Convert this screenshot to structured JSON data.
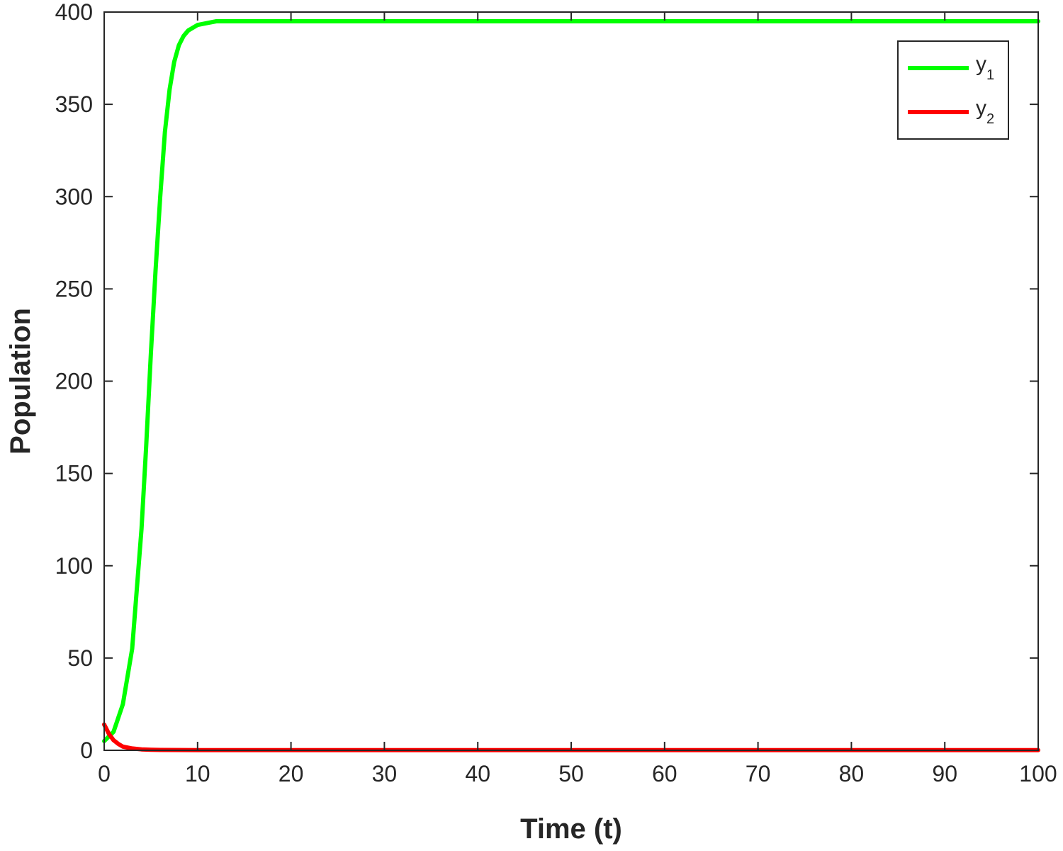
{
  "chart_data": {
    "type": "line",
    "xlabel": "Time (t)",
    "ylabel": "Population",
    "xlim": [
      0,
      100
    ],
    "ylim": [
      0,
      400
    ],
    "x_ticks": [
      0,
      10,
      20,
      30,
      40,
      50,
      60,
      70,
      80,
      90,
      100
    ],
    "y_ticks": [
      0,
      50,
      100,
      150,
      200,
      250,
      300,
      350,
      400
    ],
    "legend_position": "top-right",
    "box": true,
    "grid": false,
    "series": [
      {
        "name": "y",
        "subscript": "1",
        "color": "#00ff00",
        "x": [
          0,
          1,
          2,
          3,
          4,
          4.5,
          5,
          5.5,
          6,
          6.5,
          7,
          7.5,
          8,
          8.5,
          9,
          10,
          11,
          12,
          15,
          20,
          30,
          40,
          50,
          60,
          70,
          80,
          90,
          100
        ],
        "y": [
          5,
          10,
          25,
          55,
          120,
          165,
          215,
          260,
          300,
          335,
          358,
          373,
          382,
          387,
          390,
          393,
          394,
          395,
          395,
          395,
          395,
          395,
          395,
          395,
          395,
          395,
          395,
          395
        ]
      },
      {
        "name": "y",
        "subscript": "2",
        "color": "#ff0000",
        "x": [
          0,
          0.5,
          1,
          1.5,
          2,
          3,
          4,
          5,
          6,
          10,
          20,
          30,
          40,
          50,
          60,
          70,
          80,
          90,
          100
        ],
        "y": [
          14,
          9,
          5.5,
          3.5,
          2,
          1,
          0.5,
          0.3,
          0.2,
          0.1,
          0.1,
          0.1,
          0.1,
          0.1,
          0.1,
          0.1,
          0.1,
          0.1,
          0.1
        ]
      }
    ]
  }
}
